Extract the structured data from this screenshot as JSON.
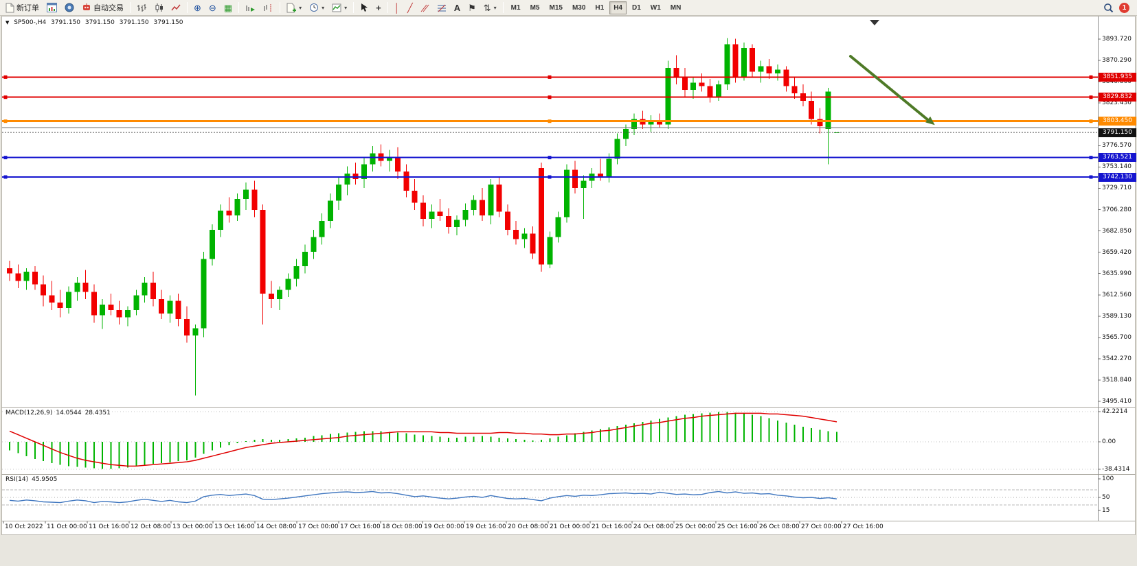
{
  "toolbar": {
    "new_order_label": "新订单",
    "algo_trading_label": "自动交易",
    "timeframes": [
      "M1",
      "M5",
      "M15",
      "M30",
      "H1",
      "H4",
      "D1",
      "W1",
      "MN"
    ],
    "active_timeframe": "H4",
    "notification_count": "1",
    "icons": {
      "zoom_in": "⊕",
      "zoom_out": "⊖",
      "tile_windows": "▦",
      "crosshair": "+",
      "vertical_line": "│",
      "trendline": "╱",
      "text": "A",
      "label": "⚑",
      "shapes": "⇅",
      "caret": "▾",
      "new_order": "document-page",
      "algo_trading": "robot",
      "chart_window": "mini-chart-window",
      "community": "globe-circle",
      "bars_mode": "ohlc-bars",
      "candles_mode": "candlesticks",
      "line_mode": "zigzag-line",
      "auto_scroll": "bars-green-arrow",
      "chart_shift": "bars-red-dashed",
      "new_chart": "page-green-plus",
      "periods": "clock",
      "indicators": "frame-green-line",
      "cursor": "pointer-arrow",
      "channel": "parallel-lines",
      "fibonacci": "fib-levels",
      "search": "magnifier"
    }
  },
  "chart": {
    "symbol_ohlc": {
      "toggle_icon": "▼",
      "symbol": "SP500-,H4",
      "open": "3791.150",
      "high": "3791.150",
      "low": "3791.150",
      "close": "3791.150"
    },
    "price_axis_labels": [
      "3893.720",
      "3870.290",
      "3846.860",
      "3823.430",
      "3800.000",
      "3776.570",
      "3753.140",
      "3729.710",
      "3706.280",
      "3682.850",
      "3659.420",
      "3635.990",
      "3612.560",
      "3589.130",
      "3565.700",
      "3542.270",
      "3518.840",
      "3495.410"
    ],
    "time_axis_labels": [
      "10 Oct 2022",
      "11 Oct 00:00",
      "11 Oct 16:00",
      "12 Oct 08:00",
      "13 Oct 00:00",
      "13 Oct 16:00",
      "14 Oct 08:00",
      "17 Oct 00:00",
      "17 Oct 16:00",
      "18 Oct 08:00",
      "19 Oct 00:00",
      "19 Oct 16:00",
      "20 Oct 08:00",
      "21 Oct 00:00",
      "21 Oct 16:00",
      "24 Oct 08:00",
      "25 Oct 00:00",
      "25 Oct 16:00",
      "26 Oct 08:00",
      "27 Oct 00:00",
      "27 Oct 16:00"
    ],
    "hlines": [
      {
        "price": 3851.935,
        "label": "3851.935",
        "color": "red",
        "width": 2,
        "handles": true
      },
      {
        "price": 3829.832,
        "label": "3829.832",
        "color": "red",
        "width": 2,
        "handles": true
      },
      {
        "price": 3803.45,
        "label": "3803.450",
        "color": "orange",
        "width": 3,
        "handles": true
      },
      {
        "price": 3796.5,
        "label": "",
        "color": "gray",
        "width": 1,
        "handles": false
      },
      {
        "price": 3763.521,
        "label": "3763.521",
        "color": "blue",
        "width": 2,
        "handles": true
      },
      {
        "price": 3742.13,
        "label": "3742.130",
        "color": "blue",
        "width": 2,
        "handles": true
      }
    ],
    "current_price": {
      "value": 3791.15,
      "label": "3791.150"
    },
    "colors": {
      "up": "#00b300",
      "down": "#f20000",
      "red_line": "#e00000",
      "orange_line": "#ff8a00",
      "blue_line": "#1515cf",
      "gray_line": "#6f6f6f",
      "histogram": "#00b400",
      "signal": "#e00000",
      "rsi": "#3f76bf",
      "arrow": "#4e7a27",
      "tag_current": "#111111"
    }
  },
  "macd": {
    "title": "MACD(12,26,9)",
    "value_main": "14.0544",
    "value_signal": "28.4351",
    "axis_labels": [
      "42.2214",
      "0.00",
      "-38.4314"
    ]
  },
  "rsi": {
    "title": "RSI(14)",
    "value": "45.9505",
    "axis_labels": [
      "100",
      "50",
      "15"
    ],
    "levels_dashed": [
      70,
      30
    ],
    "level_dotted": 50
  },
  "chart_data": {
    "type": "candlestick",
    "symbol": "SP500-",
    "timeframe": "H4",
    "y_axis": {
      "min": 3495.41,
      "max": 3893.72
    },
    "candles_ohlc": [
      [
        3642,
        3650,
        3628,
        3636
      ],
      [
        3636,
        3646,
        3620,
        3628
      ],
      [
        3628,
        3642,
        3618,
        3638
      ],
      [
        3638,
        3644,
        3618,
        3624
      ],
      [
        3624,
        3634,
        3600,
        3612
      ],
      [
        3612,
        3628,
        3596,
        3604
      ],
      [
        3604,
        3618,
        3588,
        3598
      ],
      [
        3598,
        3622,
        3592,
        3616
      ],
      [
        3616,
        3632,
        3606,
        3626
      ],
      [
        3626,
        3640,
        3608,
        3616
      ],
      [
        3616,
        3624,
        3582,
        3590
      ],
      [
        3590,
        3608,
        3575,
        3602
      ],
      [
        3602,
        3614,
        3590,
        3596
      ],
      [
        3596,
        3606,
        3580,
        3588
      ],
      [
        3588,
        3600,
        3578,
        3596
      ],
      [
        3596,
        3618,
        3590,
        3612
      ],
      [
        3612,
        3632,
        3604,
        3626
      ],
      [
        3626,
        3638,
        3600,
        3608
      ],
      [
        3608,
        3618,
        3586,
        3592
      ],
      [
        3592,
        3612,
        3582,
        3606
      ],
      [
        3606,
        3614,
        3578,
        3586
      ],
      [
        3586,
        3600,
        3560,
        3568
      ],
      [
        3568,
        3580,
        3502,
        3576
      ],
      [
        3576,
        3660,
        3566,
        3652
      ],
      [
        3652,
        3690,
        3645,
        3684
      ],
      [
        3684,
        3712,
        3676,
        3705
      ],
      [
        3705,
        3720,
        3692,
        3700
      ],
      [
        3700,
        3724,
        3694,
        3718
      ],
      [
        3718,
        3736,
        3706,
        3728
      ],
      [
        3728,
        3738,
        3698,
        3706
      ],
      [
        3706,
        3712,
        3580,
        3614
      ],
      [
        3614,
        3628,
        3598,
        3608
      ],
      [
        3608,
        3622,
        3596,
        3618
      ],
      [
        3618,
        3636,
        3610,
        3630
      ],
      [
        3630,
        3652,
        3622,
        3644
      ],
      [
        3644,
        3668,
        3636,
        3660
      ],
      [
        3660,
        3684,
        3652,
        3676
      ],
      [
        3676,
        3702,
        3668,
        3694
      ],
      [
        3694,
        3724,
        3686,
        3716
      ],
      [
        3716,
        3742,
        3706,
        3734
      ],
      [
        3734,
        3754,
        3722,
        3746
      ],
      [
        3746,
        3758,
        3734,
        3740
      ],
      [
        3740,
        3764,
        3730,
        3756
      ],
      [
        3756,
        3776,
        3748,
        3768
      ],
      [
        3768,
        3778,
        3754,
        3760
      ],
      [
        3760,
        3772,
        3748,
        3764
      ],
      [
        3764,
        3775,
        3740,
        3748
      ],
      [
        3748,
        3756,
        3720,
        3727
      ],
      [
        3727,
        3740,
        3706,
        3714
      ],
      [
        3714,
        3722,
        3688,
        3696
      ],
      [
        3696,
        3712,
        3686,
        3704
      ],
      [
        3704,
        3718,
        3694,
        3699
      ],
      [
        3699,
        3708,
        3680,
        3687
      ],
      [
        3687,
        3700,
        3678,
        3695
      ],
      [
        3695,
        3713,
        3688,
        3706
      ],
      [
        3706,
        3722,
        3700,
        3717
      ],
      [
        3717,
        3730,
        3694,
        3700
      ],
      [
        3700,
        3740,
        3690,
        3734
      ],
      [
        3734,
        3742,
        3698,
        3704
      ],
      [
        3704,
        3712,
        3678,
        3684
      ],
      [
        3684,
        3694,
        3668,
        3674
      ],
      [
        3674,
        3686,
        3664,
        3680
      ],
      [
        3680,
        3688,
        3652,
        3658
      ],
      [
        3752,
        3758,
        3638,
        3646
      ],
      [
        3646,
        3682,
        3642,
        3676
      ],
      [
        3676,
        3704,
        3670,
        3698
      ],
      [
        3698,
        3756,
        3692,
        3750
      ],
      [
        3750,
        3760,
        3724,
        3730
      ],
      [
        3730,
        3744,
        3696,
        3738
      ],
      [
        3738,
        3752,
        3730,
        3746
      ],
      [
        3746,
        3762,
        3738,
        3742
      ],
      [
        3742,
        3768,
        3736,
        3762
      ],
      [
        3762,
        3790,
        3756,
        3784
      ],
      [
        3784,
        3800,
        3776,
        3795
      ],
      [
        3795,
        3812,
        3788,
        3806
      ],
      [
        3806,
        3815,
        3795,
        3800
      ],
      [
        3800,
        3810,
        3792,
        3804
      ],
      [
        3804,
        3812,
        3796,
        3800
      ],
      [
        3800,
        3870,
        3795,
        3862
      ],
      [
        3862,
        3876,
        3844,
        3852
      ],
      [
        3852,
        3862,
        3830,
        3838
      ],
      [
        3838,
        3852,
        3828,
        3846
      ],
      [
        3846,
        3856,
        3836,
        3842
      ],
      [
        3842,
        3850,
        3824,
        3830
      ],
      [
        3830,
        3848,
        3826,
        3844
      ],
      [
        3844,
        3895,
        3838,
        3888
      ],
      [
        3888,
        3894,
        3846,
        3852
      ],
      [
        3852,
        3890,
        3848,
        3884
      ],
      [
        3884,
        3888,
        3852,
        3858
      ],
      [
        3858,
        3870,
        3846,
        3864
      ],
      [
        3864,
        3872,
        3850,
        3856
      ],
      [
        3856,
        3866,
        3848,
        3860
      ],
      [
        3860,
        3864,
        3836,
        3842
      ],
      [
        3842,
        3852,
        3828,
        3834
      ],
      [
        3834,
        3844,
        3820,
        3826
      ],
      [
        3826,
        3836,
        3800,
        3806
      ],
      [
        3806,
        3818,
        3790,
        3798
      ],
      [
        3795,
        3840,
        3756,
        3836
      ],
      [
        3791.15,
        3791.15,
        3791.15,
        3791.15
      ]
    ],
    "macd": {
      "histogram": [
        -12,
        -16,
        -20,
        -24,
        -27,
        -30,
        -32,
        -34,
        -35,
        -36,
        -37,
        -38,
        -38,
        -37,
        -36,
        -34,
        -32,
        -31,
        -30,
        -29,
        -27,
        -26,
        -22,
        -17,
        -12,
        -8,
        -5,
        -2,
        1,
        3,
        4,
        3,
        3,
        4,
        5,
        6,
        8,
        9,
        11,
        12,
        13,
        14,
        15,
        15,
        15,
        14,
        13,
        12,
        10,
        9,
        8,
        7,
        6,
        6,
        7,
        7,
        8,
        7,
        6,
        5,
        4,
        3,
        2,
        3,
        5,
        7,
        9,
        12,
        14,
        16,
        18,
        20,
        22,
        24,
        26,
        28,
        30,
        32,
        34,
        36,
        38,
        39,
        40,
        41,
        42,
        42,
        41,
        40,
        38,
        36,
        33,
        30,
        27,
        24,
        21,
        19,
        17,
        15,
        14
      ],
      "signal": [
        15,
        10,
        5,
        0,
        -5,
        -10,
        -15,
        -19,
        -23,
        -26,
        -28,
        -30,
        -32,
        -33,
        -34,
        -34,
        -33,
        -32,
        -31,
        -30,
        -29,
        -28,
        -26,
        -23,
        -20,
        -17,
        -14,
        -11,
        -8,
        -6,
        -4,
        -2,
        -1,
        0,
        1,
        2,
        3,
        4,
        5,
        6,
        8,
        9,
        10,
        11,
        12,
        13,
        14,
        14,
        14,
        14,
        14,
        13,
        13,
        12,
        12,
        12,
        12,
        12,
        13,
        13,
        12,
        12,
        11,
        11,
        10,
        10,
        11,
        11,
        12,
        13,
        15,
        16,
        18,
        20,
        22,
        24,
        26,
        27,
        29,
        31,
        33,
        34,
        36,
        37,
        38,
        39,
        40,
        40,
        40,
        40,
        39,
        39,
        38,
        37,
        36,
        34,
        32,
        30,
        28
      ]
    },
    "rsi_values": [
      42,
      40,
      43,
      41,
      38,
      37,
      36,
      40,
      43,
      41,
      36,
      39,
      38,
      36,
      38,
      42,
      45,
      42,
      39,
      42,
      38,
      36,
      40,
      52,
      56,
      58,
      55,
      57,
      59,
      55,
      45,
      44,
      46,
      48,
      51,
      54,
      57,
      60,
      62,
      64,
      65,
      63,
      64,
      66,
      62,
      63,
      60,
      56,
      52,
      54,
      51,
      48,
      46,
      48,
      51,
      53,
      50,
      55,
      51,
      47,
      46,
      47,
      44,
      41,
      48,
      52,
      55,
      53,
      56,
      55,
      57,
      60,
      61,
      62,
      60,
      61,
      59,
      64,
      61,
      58,
      59,
      57,
      58,
      63,
      66,
      62,
      65,
      61,
      62,
      59,
      60,
      56,
      54,
      51,
      49,
      50,
      47,
      49,
      46
    ]
  }
}
